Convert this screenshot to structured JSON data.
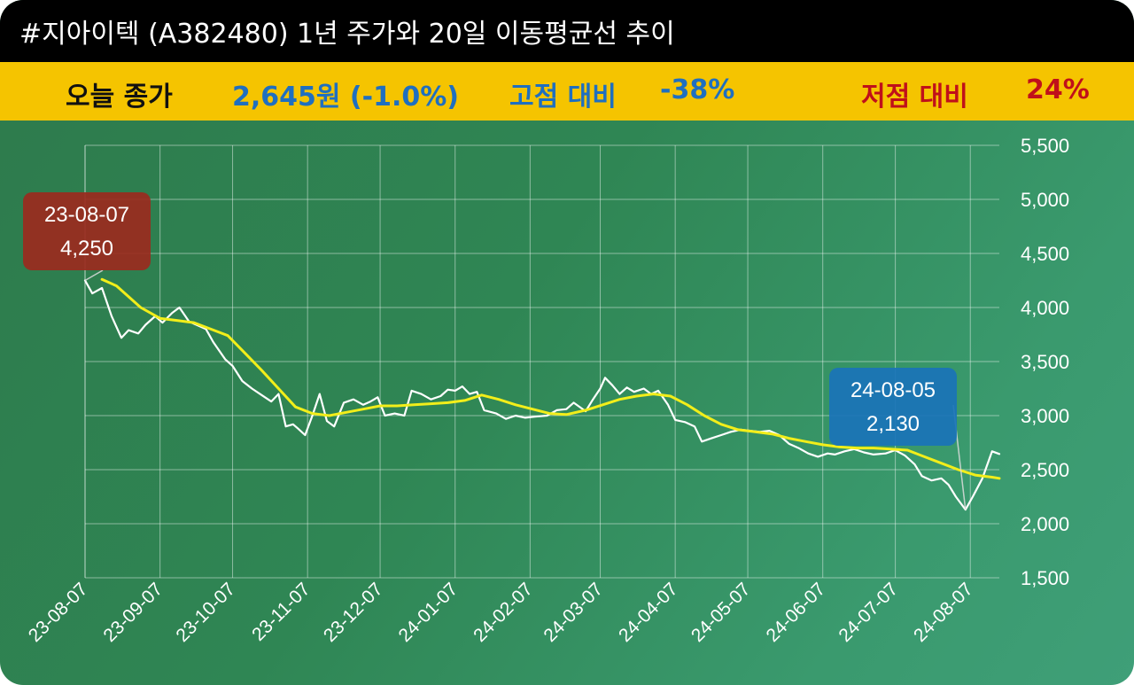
{
  "header": {
    "title": "#지아이텍 (A382480) 1년 주가와 20일 이동평균선 추이"
  },
  "stats": {
    "close_label": "오늘 종가",
    "close_value": "2,645원 (-1.0%)",
    "high_label": "고점 대비",
    "high_value": "-38%",
    "low_label": "저점 대비",
    "low_value": "24%"
  },
  "colors": {
    "price_line": "#ffffff",
    "ma_line": "#f2ee1a",
    "high_annotation": "#9b2a1e",
    "low_annotation": "#1a73b8",
    "stat_dark": "#111111",
    "stat_blue": "#1f6fc0",
    "stat_red": "#c0101a"
  },
  "chart_data": {
    "type": "line",
    "title": "",
    "xlabel": "",
    "ylabel": "",
    "ylim": [
      1500,
      5500
    ],
    "yticks": [
      1500,
      2000,
      2500,
      3000,
      3500,
      4000,
      4500,
      5000,
      5500
    ],
    "ytick_labels": [
      "1,500",
      "2,000",
      "2,500",
      "3,000",
      "3,500",
      "4,000",
      "4,500",
      "5,000",
      "5,500"
    ],
    "y_axis_position": "right",
    "grid": true,
    "x_tick_labels": [
      "23-08-07",
      "23-09-07",
      "23-10-07",
      "23-11-07",
      "23-12-07",
      "24-01-07",
      "24-02-07",
      "24-03-07",
      "24-04-07",
      "24-05-07",
      "24-06-07",
      "24-07-07",
      "24-08-07"
    ],
    "x_start": "2023-08-07",
    "x_end": "2024-08-19",
    "series": [
      {
        "key": "price",
        "points": [
          [
            "2023-08-07",
            4250
          ],
          [
            "2023-08-10",
            4130
          ],
          [
            "2023-08-14",
            4180
          ],
          [
            "2023-08-18",
            3920
          ],
          [
            "2023-08-22",
            3720
          ],
          [
            "2023-08-25",
            3790
          ],
          [
            "2023-08-29",
            3760
          ],
          [
            "2023-09-01",
            3840
          ],
          [
            "2023-09-05",
            3920
          ],
          [
            "2023-09-08",
            3860
          ],
          [
            "2023-09-12",
            3950
          ],
          [
            "2023-09-15",
            4000
          ],
          [
            "2023-09-19",
            3870
          ],
          [
            "2023-09-22",
            3840
          ],
          [
            "2023-09-26",
            3800
          ],
          [
            "2023-09-29",
            3680
          ],
          [
            "2023-10-04",
            3520
          ],
          [
            "2023-10-07",
            3460
          ],
          [
            "2023-10-11",
            3320
          ],
          [
            "2023-10-15",
            3250
          ],
          [
            "2023-10-19",
            3190
          ],
          [
            "2023-10-23",
            3130
          ],
          [
            "2023-10-26",
            3200
          ],
          [
            "2023-10-29",
            2900
          ],
          [
            "2023-11-01",
            2920
          ],
          [
            "2023-11-03",
            2880
          ],
          [
            "2023-11-06",
            2820
          ],
          [
            "2023-11-09",
            3000
          ],
          [
            "2023-11-12",
            3200
          ],
          [
            "2023-11-15",
            2950
          ],
          [
            "2023-11-18",
            2900
          ],
          [
            "2023-11-22",
            3120
          ],
          [
            "2023-11-26",
            3150
          ],
          [
            "2023-11-30",
            3100
          ],
          [
            "2023-12-03",
            3130
          ],
          [
            "2023-12-06",
            3170
          ],
          [
            "2023-12-09",
            3000
          ],
          [
            "2023-12-13",
            3020
          ],
          [
            "2023-12-17",
            3000
          ],
          [
            "2023-12-20",
            3230
          ],
          [
            "2023-12-24",
            3200
          ],
          [
            "2023-12-28",
            3150
          ],
          [
            "2024-01-01",
            3180
          ],
          [
            "2024-01-04",
            3240
          ],
          [
            "2024-01-07",
            3230
          ],
          [
            "2024-01-10",
            3270
          ],
          [
            "2024-01-13",
            3200
          ],
          [
            "2024-01-16",
            3220
          ],
          [
            "2024-01-19",
            3050
          ],
          [
            "2024-01-24",
            3020
          ],
          [
            "2024-01-28",
            2970
          ],
          [
            "2024-02-01",
            3000
          ],
          [
            "2024-02-05",
            2980
          ],
          [
            "2024-02-09",
            2990
          ],
          [
            "2024-02-14",
            3000
          ],
          [
            "2024-02-18",
            3050
          ],
          [
            "2024-02-22",
            3060
          ],
          [
            "2024-02-25",
            3120
          ],
          [
            "2024-03-01",
            3040
          ],
          [
            "2024-03-04",
            3150
          ],
          [
            "2024-03-07",
            3250
          ],
          [
            "2024-03-09",
            3350
          ],
          [
            "2024-03-12",
            3280
          ],
          [
            "2024-03-15",
            3200
          ],
          [
            "2024-03-18",
            3260
          ],
          [
            "2024-03-21",
            3220
          ],
          [
            "2024-03-25",
            3250
          ],
          [
            "2024-03-28",
            3200
          ],
          [
            "2024-03-31",
            3230
          ],
          [
            "2024-04-04",
            3100
          ],
          [
            "2024-04-07",
            2960
          ],
          [
            "2024-04-11",
            2940
          ],
          [
            "2024-04-15",
            2900
          ],
          [
            "2024-04-18",
            2760
          ],
          [
            "2024-04-22",
            2790
          ],
          [
            "2024-04-26",
            2820
          ],
          [
            "2024-04-30",
            2850
          ],
          [
            "2024-05-04",
            2870
          ],
          [
            "2024-05-08",
            2860
          ],
          [
            "2024-05-12",
            2850
          ],
          [
            "2024-05-16",
            2860
          ],
          [
            "2024-05-20",
            2820
          ],
          [
            "2024-05-24",
            2740
          ],
          [
            "2024-05-28",
            2700
          ],
          [
            "2024-06-01",
            2650
          ],
          [
            "2024-06-05",
            2620
          ],
          [
            "2024-06-09",
            2650
          ],
          [
            "2024-06-12",
            2640
          ],
          [
            "2024-06-16",
            2670
          ],
          [
            "2024-06-20",
            2690
          ],
          [
            "2024-06-24",
            2660
          ],
          [
            "2024-06-28",
            2640
          ],
          [
            "2024-07-03",
            2650
          ],
          [
            "2024-07-07",
            2680
          ],
          [
            "2024-07-11",
            2630
          ],
          [
            "2024-07-15",
            2550
          ],
          [
            "2024-07-18",
            2440
          ],
          [
            "2024-07-22",
            2400
          ],
          [
            "2024-07-26",
            2420
          ],
          [
            "2024-07-29",
            2360
          ],
          [
            "2024-08-01",
            2250
          ],
          [
            "2024-08-05",
            2130
          ],
          [
            "2024-08-08",
            2250
          ],
          [
            "2024-08-12",
            2420
          ],
          [
            "2024-08-16",
            2670
          ],
          [
            "2024-08-19",
            2645
          ]
        ]
      },
      {
        "key": "ma20",
        "points": [
          [
            "2023-08-14",
            4260
          ],
          [
            "2023-08-20",
            4200
          ],
          [
            "2023-08-25",
            4100
          ],
          [
            "2023-08-30",
            4000
          ],
          [
            "2023-09-07",
            3900
          ],
          [
            "2023-09-14",
            3880
          ],
          [
            "2023-09-21",
            3860
          ],
          [
            "2023-09-28",
            3800
          ],
          [
            "2023-10-05",
            3740
          ],
          [
            "2023-10-12",
            3580
          ],
          [
            "2023-10-19",
            3420
          ],
          [
            "2023-10-26",
            3250
          ],
          [
            "2023-11-02",
            3080
          ],
          [
            "2023-11-09",
            3020
          ],
          [
            "2023-11-16",
            3000
          ],
          [
            "2023-11-23",
            3030
          ],
          [
            "2023-11-30",
            3060
          ],
          [
            "2023-12-07",
            3090
          ],
          [
            "2023-12-14",
            3090
          ],
          [
            "2023-12-21",
            3100
          ],
          [
            "2023-12-28",
            3110
          ],
          [
            "2024-01-04",
            3120
          ],
          [
            "2024-01-11",
            3140
          ],
          [
            "2024-01-18",
            3190
          ],
          [
            "2024-01-25",
            3150
          ],
          [
            "2024-02-01",
            3100
          ],
          [
            "2024-02-08",
            3060
          ],
          [
            "2024-02-15",
            3020
          ],
          [
            "2024-02-22",
            3010
          ],
          [
            "2024-03-01",
            3050
          ],
          [
            "2024-03-08",
            3100
          ],
          [
            "2024-03-15",
            3150
          ],
          [
            "2024-03-22",
            3180
          ],
          [
            "2024-03-29",
            3200
          ],
          [
            "2024-04-05",
            3180
          ],
          [
            "2024-04-12",
            3100
          ],
          [
            "2024-04-19",
            3000
          ],
          [
            "2024-04-26",
            2920
          ],
          [
            "2024-05-03",
            2870
          ],
          [
            "2024-05-10",
            2850
          ],
          [
            "2024-05-17",
            2830
          ],
          [
            "2024-05-24",
            2790
          ],
          [
            "2024-05-31",
            2760
          ],
          [
            "2024-06-07",
            2730
          ],
          [
            "2024-06-14",
            2710
          ],
          [
            "2024-06-21",
            2700
          ],
          [
            "2024-06-28",
            2700
          ],
          [
            "2024-07-05",
            2690
          ],
          [
            "2024-07-12",
            2680
          ],
          [
            "2024-07-19",
            2620
          ],
          [
            "2024-07-26",
            2560
          ],
          [
            "2024-08-02",
            2500
          ],
          [
            "2024-08-09",
            2450
          ],
          [
            "2024-08-16",
            2430
          ],
          [
            "2024-08-19",
            2420
          ]
        ]
      }
    ],
    "annotations": [
      {
        "key": "high",
        "date_label": "23-08-07",
        "value_label": "4,250",
        "x": "2023-08-07",
        "y": 4250
      },
      {
        "key": "low",
        "date_label": "24-08-05",
        "value_label": "2,130",
        "x": "2024-08-05",
        "y": 2130
      }
    ]
  }
}
